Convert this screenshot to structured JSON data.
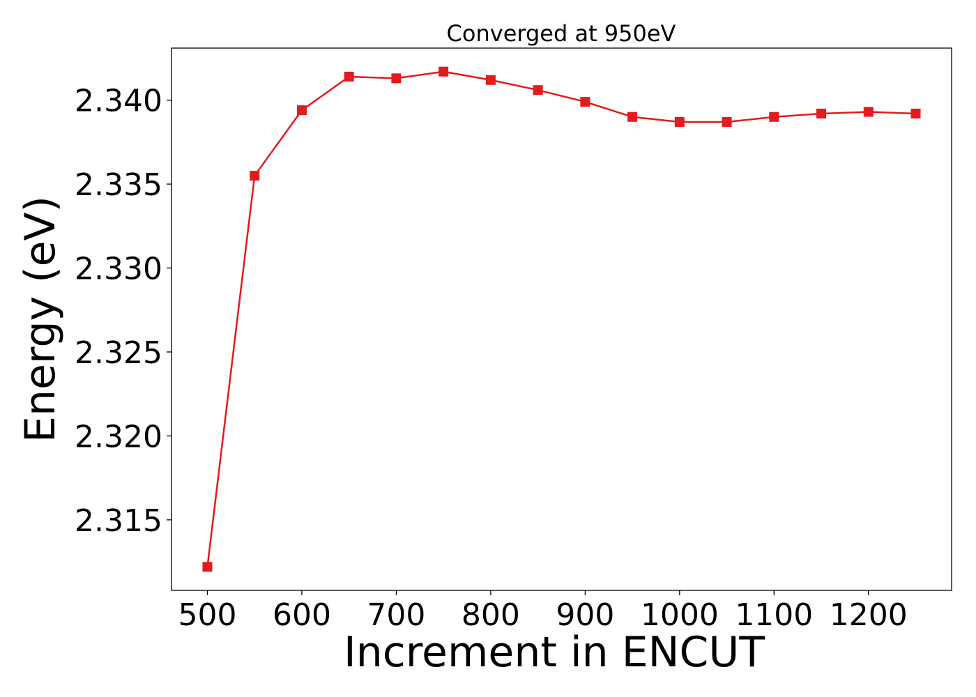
{
  "chart_data": {
    "type": "line",
    "title": "Converged at 950eV",
    "xlabel": "Increment in ENCUT",
    "ylabel": "Energy (eV)",
    "xlim": [
      462,
      1288
    ],
    "ylim": [
      2.3108,
      2.3431
    ],
    "xticks": [
      500,
      600,
      700,
      800,
      900,
      1000,
      1100,
      1200
    ],
    "yticks": [
      2.315,
      2.32,
      2.325,
      2.33,
      2.335,
      2.34
    ],
    "ytick_labels": [
      "2.315",
      "2.320",
      "2.325",
      "2.330",
      "2.335",
      "2.340"
    ],
    "grid": false,
    "color": "#e41a1c",
    "marker": "square",
    "series": [
      {
        "x": [
          500,
          550,
          600,
          650,
          700,
          750,
          800,
          850,
          900,
          950,
          1000,
          1050,
          1100,
          1150,
          1200,
          1250
        ],
        "y": [
          2.3122,
          2.3355,
          2.3394,
          2.3414,
          2.3413,
          2.3417,
          2.3412,
          2.3406,
          2.3399,
          2.339,
          2.3387,
          2.3387,
          2.339,
          2.3392,
          2.3393,
          2.3392
        ]
      }
    ]
  }
}
